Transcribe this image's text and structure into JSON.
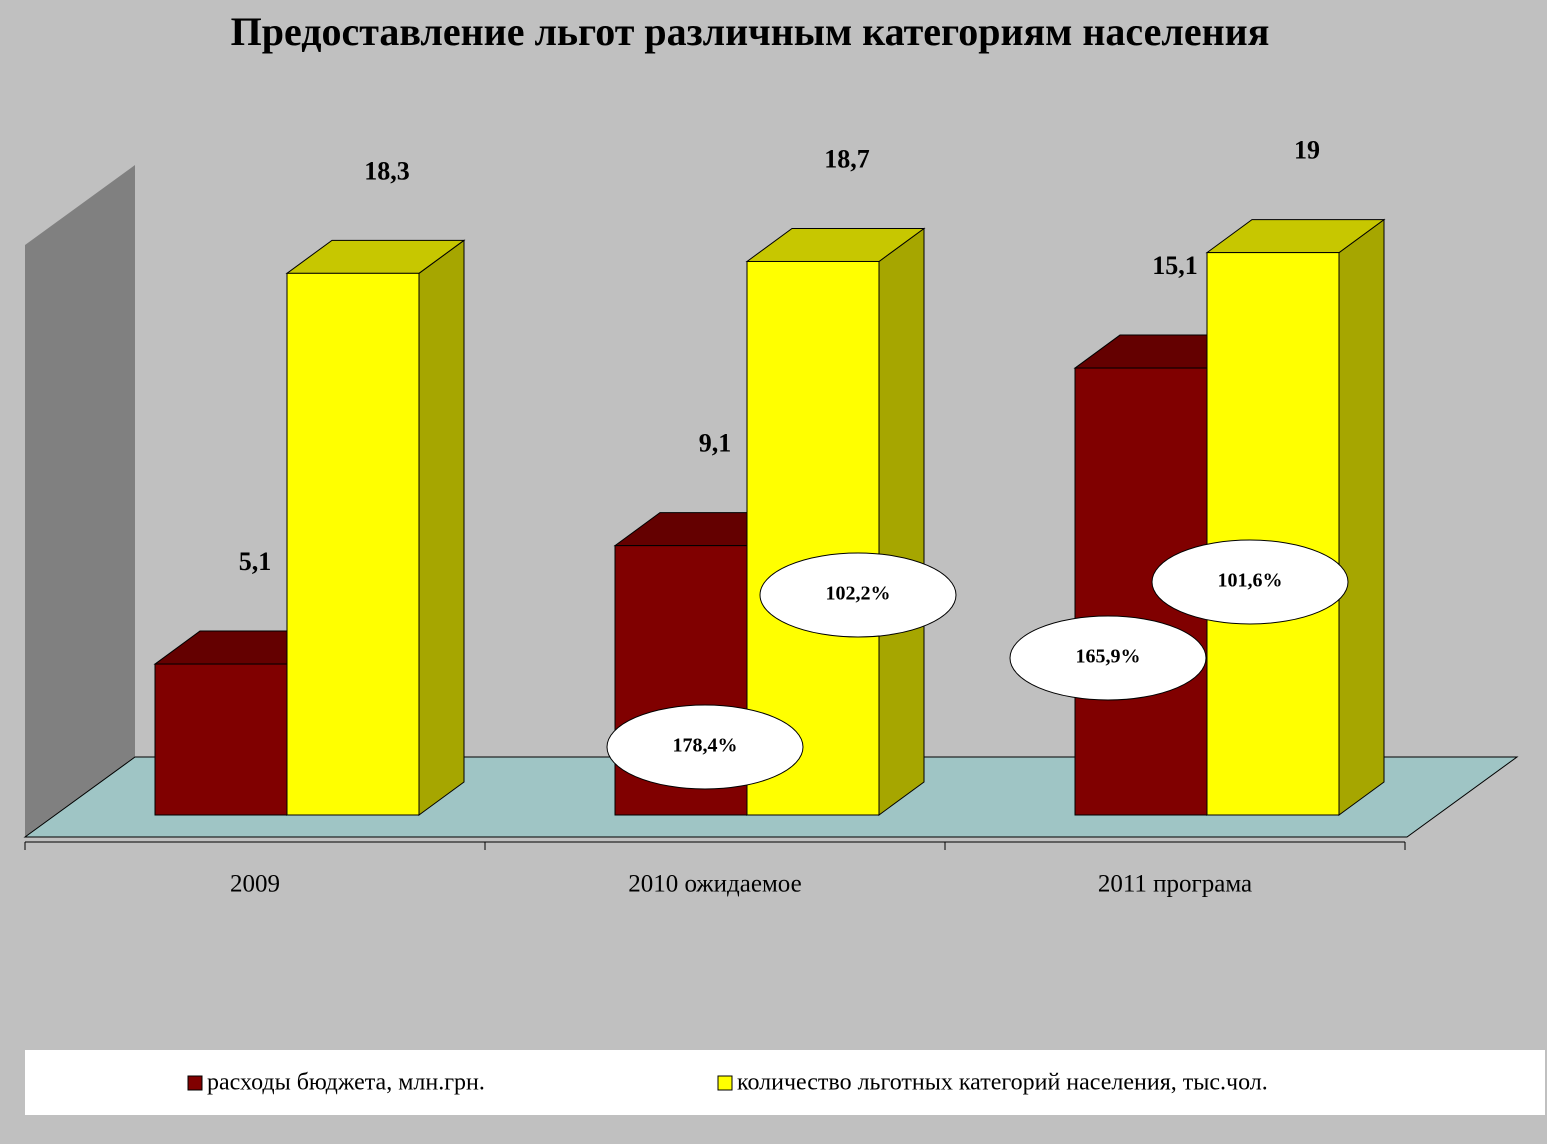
{
  "chart_data": {
    "type": "bar3d",
    "title": "Предоставление льгот различным категориям населения",
    "categories": [
      "2009",
      "2010 ожидаемое",
      "2011 програма"
    ],
    "series": [
      {
        "name": "расходы бюджета, млн.грн.",
        "color": "#800000",
        "values": [
          5.1,
          9.1,
          15.1
        ],
        "value_labels": [
          "5,1",
          "9,1",
          "15,1"
        ],
        "change_labels": [
          null,
          "178,4%",
          "165,9%"
        ]
      },
      {
        "name": "количество льготных категорий населения, тыс.чол.",
        "color": "#ffff00",
        "values": [
          18.3,
          18.7,
          19
        ],
        "value_labels": [
          "18,3",
          "18,7",
          "19"
        ],
        "change_labels": [
          null,
          "102,2%",
          "101,6%"
        ]
      }
    ],
    "ylim": [
      0,
      20
    ],
    "legend": "bottom"
  }
}
